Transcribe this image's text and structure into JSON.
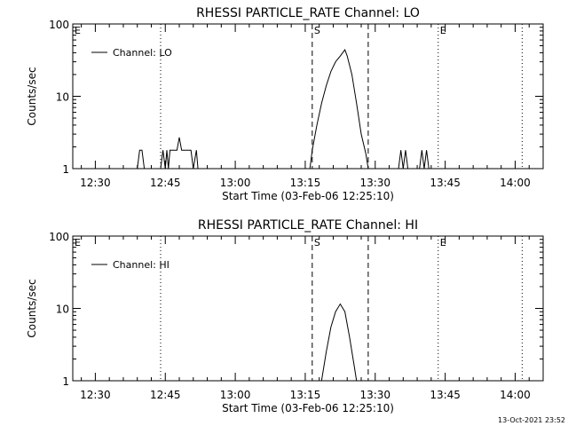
{
  "footer": {
    "timestamp": "13-Oct-2021 23:52"
  },
  "chart_data": [
    {
      "type": "line",
      "title": "RHESSI PARTICLE_RATE Channel: LO",
      "xlabel": "Start Time (03-Feb-06 12:25:10)",
      "ylabel": "Counts/sec",
      "y_scale": "log",
      "ylim": [
        1,
        100
      ],
      "xlim": [
        "12:25:10",
        "14:06:00"
      ],
      "x_ticks": [
        "12:30",
        "12:45",
        "13:00",
        "13:15",
        "13:30",
        "13:45",
        "14:00"
      ],
      "y_ticks": [
        "1",
        "10",
        "100"
      ],
      "legend": {
        "placement": "top-left",
        "entries": [
          "Channel: LO"
        ]
      },
      "markers": [
        {
          "label": "E",
          "time": "12:25:10",
          "style": "dotted"
        },
        {
          "label": "",
          "time": "12:44:00",
          "style": "dotted"
        },
        {
          "label": "S",
          "time": "13:16:30",
          "style": "dashed"
        },
        {
          "label": "",
          "time": "13:28:30",
          "style": "dashed"
        },
        {
          "label": "E",
          "time": "13:43:30",
          "style": "dotted"
        },
        {
          "label": "",
          "time": "14:01:30",
          "style": "dotted"
        }
      ],
      "series": [
        {
          "name": "Channel: LO",
          "points": [
            [
              "12:25:10",
              1
            ],
            [
              "12:39:00",
              1
            ],
            [
              "12:39:30",
              1.8
            ],
            [
              "12:40:00",
              1.8
            ],
            [
              "12:40:30",
              1
            ],
            [
              "12:44:00",
              1
            ],
            [
              "12:44:30",
              1.8
            ],
            [
              "12:45:00",
              1
            ],
            [
              "12:45:20",
              1.8
            ],
            [
              "12:45:40",
              1
            ],
            [
              "12:46:00",
              1.8
            ],
            [
              "12:47:30",
              1.8
            ],
            [
              "12:48:00",
              2.7
            ],
            [
              "12:48:30",
              1.8
            ],
            [
              "12:50:30",
              1.8
            ],
            [
              "12:51:00",
              1
            ],
            [
              "12:51:40",
              1.8
            ],
            [
              "12:52:00",
              1
            ],
            [
              "13:16:00",
              1
            ],
            [
              "13:16:30",
              1.8
            ],
            [
              "13:17:30",
              4
            ],
            [
              "13:18:30",
              8
            ],
            [
              "13:19:30",
              14
            ],
            [
              "13:20:30",
              22
            ],
            [
              "13:21:30",
              30
            ],
            [
              "13:22:30",
              36
            ],
            [
              "13:23:30",
              44
            ],
            [
              "13:24:00",
              36
            ],
            [
              "13:25:00",
              20
            ],
            [
              "13:26:00",
              8
            ],
            [
              "13:27:00",
              3
            ],
            [
              "13:28:00",
              1.6
            ],
            [
              "13:28:30",
              1
            ],
            [
              "13:35:00",
              1
            ],
            [
              "13:35:30",
              1.8
            ],
            [
              "13:36:00",
              1
            ],
            [
              "13:36:30",
              1.8
            ],
            [
              "13:37:00",
              1
            ],
            [
              "13:39:30",
              1
            ],
            [
              "13:40:00",
              1.8
            ],
            [
              "13:40:30",
              1
            ],
            [
              "13:41:00",
              1.8
            ],
            [
              "13:41:30",
              1
            ],
            [
              "14:06:00",
              1
            ]
          ]
        }
      ]
    },
    {
      "type": "line",
      "title": "RHESSI PARTICLE_RATE Channel: HI",
      "xlabel": "Start Time (03-Feb-06 12:25:10)",
      "ylabel": "Counts/sec",
      "y_scale": "log",
      "ylim": [
        1,
        100
      ],
      "xlim": [
        "12:25:10",
        "14:06:00"
      ],
      "x_ticks": [
        "12:30",
        "12:45",
        "13:00",
        "13:15",
        "13:30",
        "13:45",
        "14:00"
      ],
      "y_ticks": [
        "1",
        "10",
        "100"
      ],
      "legend": {
        "placement": "top-left",
        "entries": [
          "Channel: HI"
        ]
      },
      "markers": [
        {
          "label": "E",
          "time": "12:25:10",
          "style": "dotted"
        },
        {
          "label": "",
          "time": "12:44:00",
          "style": "dotted"
        },
        {
          "label": "S",
          "time": "13:16:30",
          "style": "dashed"
        },
        {
          "label": "",
          "time": "13:28:30",
          "style": "dashed"
        },
        {
          "label": "E",
          "time": "13:43:30",
          "style": "dotted"
        },
        {
          "label": "",
          "time": "14:01:30",
          "style": "dotted"
        }
      ],
      "series": [
        {
          "name": "Channel: HI",
          "points": [
            [
              "13:18:30",
              1
            ],
            [
              "13:19:30",
              2.5
            ],
            [
              "13:20:30",
              5.5
            ],
            [
              "13:21:30",
              9
            ],
            [
              "13:22:30",
              11.5
            ],
            [
              "13:23:30",
              9
            ],
            [
              "13:24:30",
              4
            ],
            [
              "13:25:30",
              1.6
            ],
            [
              "13:26:00",
              1
            ]
          ]
        }
      ]
    }
  ]
}
